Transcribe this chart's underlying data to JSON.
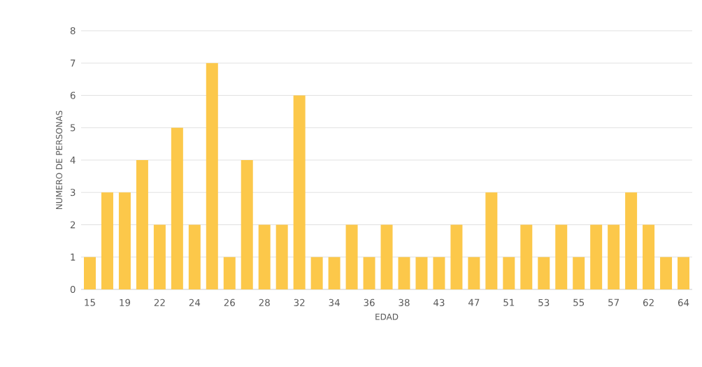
{
  "chart_data": {
    "type": "bar",
    "xlabel": "EDAD",
    "ylabel": "NUMERO DE PERSONAS",
    "categories": [
      "15",
      null,
      "19",
      null,
      "22",
      null,
      "24",
      null,
      "26",
      null,
      "28",
      null,
      "32",
      null,
      "34",
      null,
      "36",
      null,
      "38",
      null,
      "43",
      null,
      "47",
      null,
      "51",
      null,
      "53",
      null,
      "55",
      null,
      "57",
      null,
      "62",
      null,
      "64"
    ],
    "values": [
      1,
      3,
      3,
      4,
      2,
      5,
      2,
      7,
      1,
      4,
      2,
      2,
      6,
      1,
      1,
      2,
      1,
      2,
      1,
      1,
      1,
      2,
      1,
      3,
      1,
      2,
      1,
      2,
      1,
      2,
      2,
      3,
      2,
      1,
      1
    ],
    "color": "#fcc84a",
    "ylim": [
      0,
      8
    ],
    "yticks": [
      0,
      1,
      2,
      3,
      4,
      5,
      6,
      7,
      8
    ],
    "grid": "y"
  }
}
